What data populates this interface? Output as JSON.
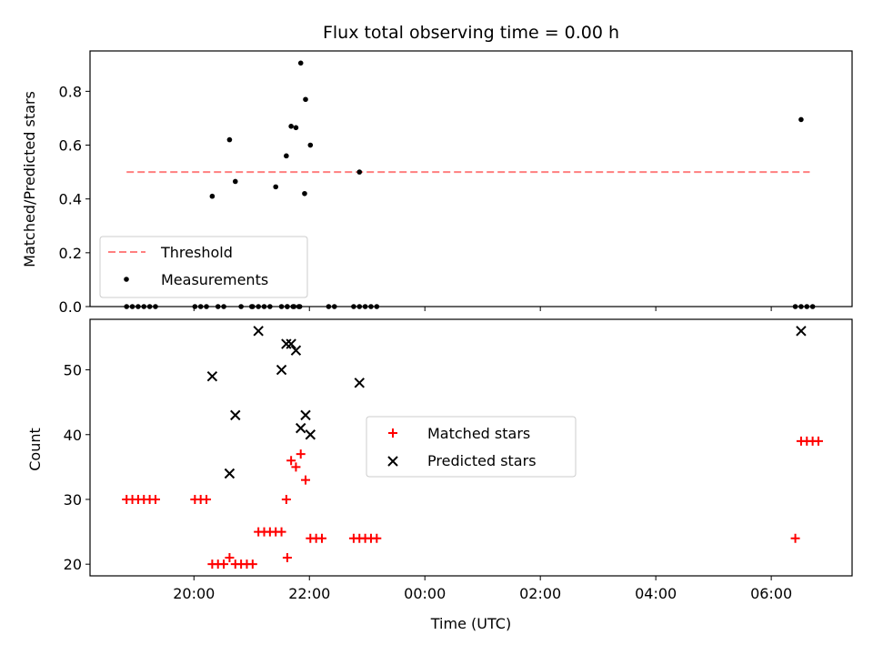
{
  "chart_data": [
    {
      "type": "scatter",
      "title": "Flux total observing time = 0.00 h",
      "xlabel": "",
      "ylabel": "Matched/Predicted stars",
      "ylim": [
        0,
        0.95
      ],
      "yticks": [
        "0.0",
        "0.2",
        "0.4",
        "0.6",
        "0.8"
      ],
      "legend_position": "lower-left",
      "threshold": {
        "name": "Threshold",
        "value": 0.5,
        "x_start": "18:50",
        "x_end": "06:40",
        "color": "#ff7f7f"
      },
      "series": [
        {
          "name": "Measurements",
          "color": "#000000",
          "points": [
            [
              "18:50",
              0.0
            ],
            [
              "18:56",
              0.0
            ],
            [
              "19:02",
              0.0
            ],
            [
              "19:08",
              0.0
            ],
            [
              "19:14",
              0.0
            ],
            [
              "19:20",
              0.0
            ],
            [
              "20:01",
              0.0
            ],
            [
              "20:07",
              0.0
            ],
            [
              "20:13",
              0.0
            ],
            [
              "20:19",
              0.41
            ],
            [
              "20:25",
              0.0
            ],
            [
              "20:31",
              0.0
            ],
            [
              "20:37",
              0.62
            ],
            [
              "20:43",
              0.465
            ],
            [
              "20:49",
              0.0
            ],
            [
              "21:01",
              0.0
            ],
            [
              "21:07",
              0.0
            ],
            [
              "21:13",
              0.0
            ],
            [
              "21:19",
              0.0
            ],
            [
              "21:25",
              0.445
            ],
            [
              "21:31",
              0.0
            ],
            [
              "21:37",
              0.0
            ],
            [
              "21:43",
              0.0
            ],
            [
              "21:49",
              0.0
            ],
            [
              "21:55",
              0.42
            ],
            [
              "21:00",
              0.0
            ],
            [
              "21:44",
              0.0
            ],
            [
              "21:50",
              0.0
            ],
            [
              "21:37",
              0.0
            ],
            [
              "22:20",
              0.0
            ],
            [
              "22:26",
              0.0
            ]
          ],
          "highlight_points": [
            [
              "21:36",
              0.56
            ],
            [
              "21:41",
              0.67
            ],
            [
              "21:46",
              0.665
            ],
            [
              "21:51",
              0.905
            ],
            [
              "21:56",
              0.77
            ],
            [
              "22:01",
              0.6
            ],
            [
              "22:52",
              0.5
            ],
            [
              "06:31",
              0.695
            ]
          ],
          "zero_points": [
            [
              "22:46",
              0.0
            ],
            [
              "22:52",
              0.0
            ],
            [
              "22:58",
              0.0
            ],
            [
              "23:04",
              0.0
            ],
            [
              "23:10",
              0.0
            ],
            [
              "06:25",
              0.0
            ],
            [
              "06:31",
              0.0
            ],
            [
              "06:37",
              0.0
            ],
            [
              "06:43",
              0.0
            ]
          ]
        }
      ]
    },
    {
      "type": "scatter",
      "title": "",
      "xlabel": "Time (UTC)",
      "ylabel": "Count",
      "ylim": [
        18.2,
        57.8
      ],
      "yticks": [
        "20",
        "30",
        "40",
        "50"
      ],
      "xticks": [
        "20:00",
        "22:00",
        "00:00",
        "02:00",
        "04:00",
        "06:00"
      ],
      "legend_position": "center",
      "series": [
        {
          "name": "Matched stars",
          "color": "#ff0000",
          "marker": "+",
          "points": [
            [
              "18:50",
              30
            ],
            [
              "18:56",
              30
            ],
            [
              "19:02",
              30
            ],
            [
              "19:08",
              30
            ],
            [
              "19:14",
              30
            ],
            [
              "19:20",
              30
            ],
            [
              "20:01",
              30
            ],
            [
              "20:07",
              30
            ],
            [
              "20:13",
              30
            ],
            [
              "20:19",
              20
            ],
            [
              "20:25",
              20
            ],
            [
              "20:31",
              20
            ],
            [
              "20:37",
              21
            ],
            [
              "20:43",
              20
            ],
            [
              "20:49",
              20
            ],
            [
              "20:55",
              20
            ],
            [
              "21:01",
              20
            ],
            [
              "21:07",
              25
            ],
            [
              "21:13",
              25
            ],
            [
              "21:19",
              25
            ],
            [
              "21:25",
              25
            ],
            [
              "21:31",
              25
            ],
            [
              "21:37",
              21
            ],
            [
              "21:36",
              30
            ],
            [
              "21:41",
              36
            ],
            [
              "21:46",
              35
            ],
            [
              "21:51",
              37
            ],
            [
              "21:56",
              33
            ],
            [
              "22:01",
              24
            ],
            [
              "22:07",
              24
            ],
            [
              "22:13",
              24
            ],
            [
              "22:46",
              24
            ],
            [
              "22:52",
              24
            ],
            [
              "22:58",
              24
            ],
            [
              "23:04",
              24
            ],
            [
              "23:10",
              24
            ],
            [
              "06:25",
              24
            ],
            [
              "06:31",
              39
            ],
            [
              "06:37",
              39
            ],
            [
              "06:43",
              39
            ],
            [
              "06:49",
              39
            ]
          ]
        },
        {
          "name": "Predicted stars",
          "color": "#000000",
          "marker": "x",
          "points": [
            [
              "20:19",
              49
            ],
            [
              "20:37",
              34
            ],
            [
              "20:43",
              43
            ],
            [
              "21:07",
              56
            ],
            [
              "21:31",
              50
            ],
            [
              "21:36",
              54
            ],
            [
              "21:41",
              54
            ],
            [
              "21:46",
              53
            ],
            [
              "21:51",
              41
            ],
            [
              "21:56",
              43
            ],
            [
              "22:01",
              40
            ],
            [
              "22:52",
              48
            ],
            [
              "06:31",
              56
            ]
          ]
        }
      ]
    }
  ]
}
